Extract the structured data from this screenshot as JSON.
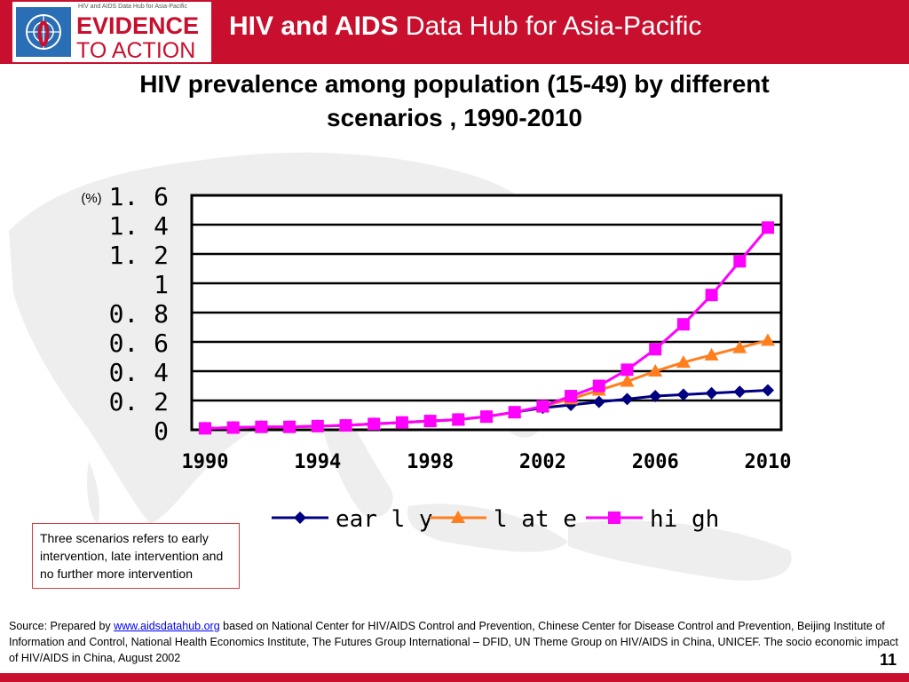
{
  "header": {
    "logo_tagline": "HIV and AIDS Data Hub for Asia-Pacific",
    "logo_line1": "EVIDENCE",
    "logo_line2": "TO ACTION",
    "hub_title_bold": "HIV and AIDS",
    "hub_title_rest": " Data Hub for Asia-Pacific"
  },
  "title_line1": "HIV prevalence among population (15-49) by different",
  "title_line2": "scenarios , 1990-2010",
  "chart_data": {
    "type": "line",
    "ylabel": "(%)",
    "ylim": [
      0,
      1.6
    ],
    "yticks": [
      "0",
      "0. 2",
      "0. 4",
      "0. 6",
      "0. 8",
      "1",
      "1. 2",
      "1. 4",
      "1. 6"
    ],
    "xlim": [
      1990,
      2010
    ],
    "xticks": [
      "1990",
      "1994",
      "1998",
      "2002",
      "2006",
      "2010"
    ],
    "x": [
      1990,
      1991,
      1992,
      1993,
      1994,
      1995,
      1996,
      1997,
      1998,
      1999,
      2000,
      2001,
      2002,
      2003,
      2004,
      2005,
      2006,
      2007,
      2008,
      2009,
      2010
    ],
    "legend_position": "bottom",
    "series": [
      {
        "name": "ear l y",
        "color": "#000080",
        "marker": "diamond",
        "values": [
          0.01,
          0.015,
          0.02,
          0.02,
          0.025,
          0.03,
          0.04,
          0.05,
          0.06,
          0.07,
          0.09,
          0.12,
          0.15,
          0.17,
          0.19,
          0.21,
          0.23,
          0.24,
          0.25,
          0.26,
          0.27
        ]
      },
      {
        "name": "l at e",
        "color": "#ff7f1e",
        "marker": "triangle",
        "values": [
          0.01,
          0.015,
          0.02,
          0.02,
          0.025,
          0.03,
          0.04,
          0.05,
          0.06,
          0.07,
          0.09,
          0.12,
          0.16,
          0.21,
          0.27,
          0.33,
          0.4,
          0.46,
          0.51,
          0.56,
          0.61
        ]
      },
      {
        "name": "hi gh",
        "color": "#ff00ff",
        "marker": "square",
        "values": [
          0.01,
          0.015,
          0.02,
          0.02,
          0.025,
          0.03,
          0.04,
          0.05,
          0.06,
          0.07,
          0.09,
          0.12,
          0.16,
          0.23,
          0.3,
          0.41,
          0.55,
          0.72,
          0.92,
          1.15,
          1.38
        ]
      }
    ]
  },
  "note": "Three scenarios refers to early intervention, late intervention and no further more intervention",
  "source": {
    "prefix": "Source: Prepared by ",
    "link": "www.aidsdatahub.org",
    "rest": "  based on National Center for HIV/AIDS Control and Prevention, Chinese Center for Disease Control and Prevention, Beijing Institute of Information and Control, National Health Economics Institute, The Futures Group International – DFID, UN Theme Group on HIV/AIDS in China, UNICEF. The socio economic impact of HIV/AIDS in China, August 2002"
  },
  "page_number": "11",
  "colors": {
    "brand_red": "#c8102e"
  }
}
